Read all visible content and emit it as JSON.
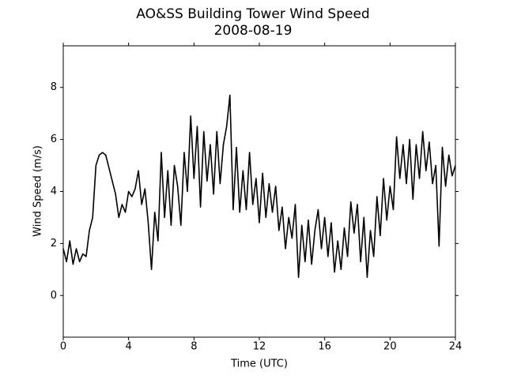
{
  "chart_data": {
    "type": "line",
    "title": "AO&SS Building Tower Wind Speed",
    "subtitle": "2008-08-19",
    "x_label": "Time (UTC)",
    "y_label": "Wind Speed (m/s)",
    "xlim": [
      0,
      24
    ],
    "xticks": [
      0,
      4,
      8,
      12,
      16,
      20,
      24
    ],
    "ylim": [
      -1.6,
      9.6
    ],
    "yticks": [
      0,
      2,
      4,
      6,
      8
    ],
    "x": [
      0,
      0.2,
      0.4,
      0.6,
      0.8,
      1,
      1.2,
      1.4,
      1.6,
      1.8,
      2,
      2.2,
      2.4,
      2.6,
      2.8,
      3,
      3.2,
      3.4,
      3.6,
      3.8,
      4,
      4.2,
      4.4,
      4.6,
      4.8,
      5,
      5.2,
      5.4,
      5.6,
      5.8,
      6,
      6.2,
      6.4,
      6.6,
      6.8,
      7,
      7.2,
      7.4,
      7.6,
      7.8,
      8,
      8.2,
      8.4,
      8.6,
      8.8,
      9,
      9.2,
      9.4,
      9.6,
      9.8,
      10,
      10.2,
      10.4,
      10.6,
      10.8,
      11,
      11.2,
      11.4,
      11.6,
      11.8,
      12,
      12.2,
      12.4,
      12.6,
      12.8,
      13,
      13.2,
      13.4,
      13.6,
      13.8,
      14,
      14.2,
      14.4,
      14.6,
      14.8,
      15,
      15.2,
      15.4,
      15.6,
      15.8,
      16,
      16.2,
      16.4,
      16.6,
      16.8,
      17,
      17.2,
      17.4,
      17.6,
      17.8,
      18,
      18.2,
      18.4,
      18.6,
      18.8,
      19,
      19.2,
      19.4,
      19.6,
      19.8,
      20,
      20.2,
      20.4,
      20.6,
      20.8,
      21,
      21.2,
      21.4,
      21.6,
      21.8,
      22,
      22.2,
      22.4,
      22.6,
      22.8,
      23,
      23.2,
      23.4,
      23.6,
      23.8,
      24
    ],
    "series": [
      {
        "name": "Wind Speed",
        "color": "#000000",
        "values": [
          1.8,
          1.3,
          2.1,
          1.2,
          1.8,
          1.3,
          1.6,
          1.5,
          2.5,
          3.0,
          5.0,
          5.4,
          5.5,
          5.4,
          4.9,
          4.4,
          3.9,
          3.0,
          3.5,
          3.2,
          4.0,
          3.8,
          4.1,
          4.8,
          3.5,
          4.1,
          2.8,
          1.0,
          3.2,
          2.1,
          5.5,
          3.0,
          4.8,
          2.7,
          5.0,
          4.2,
          2.7,
          5.5,
          4.0,
          6.9,
          4.5,
          6.5,
          3.4,
          6.3,
          4.4,
          5.8,
          3.9,
          6.3,
          4.3,
          5.8,
          6.5,
          7.7,
          3.3,
          5.7,
          3.2,
          4.8,
          3.3,
          5.5,
          3.5,
          4.5,
          2.8,
          4.7,
          3.0,
          4.3,
          3.2,
          4.2,
          2.5,
          3.4,
          1.8,
          3.0,
          2.2,
          3.5,
          0.7,
          2.7,
          1.3,
          2.9,
          1.2,
          2.5,
          3.3,
          1.8,
          3.0,
          1.5,
          2.8,
          0.9,
          2.1,
          1.0,
          2.6,
          1.5,
          3.6,
          2.4,
          3.5,
          1.3,
          3.0,
          0.7,
          2.5,
          1.5,
          3.8,
          2.3,
          4.5,
          2.9,
          4.2,
          3.3,
          6.1,
          4.5,
          5.8,
          4.3,
          6.0,
          3.7,
          5.8,
          4.5,
          6.3,
          4.8,
          5.9,
          4.3,
          5.0,
          1.9,
          5.7,
          4.2,
          5.4,
          4.6,
          5.0
        ]
      }
    ]
  }
}
